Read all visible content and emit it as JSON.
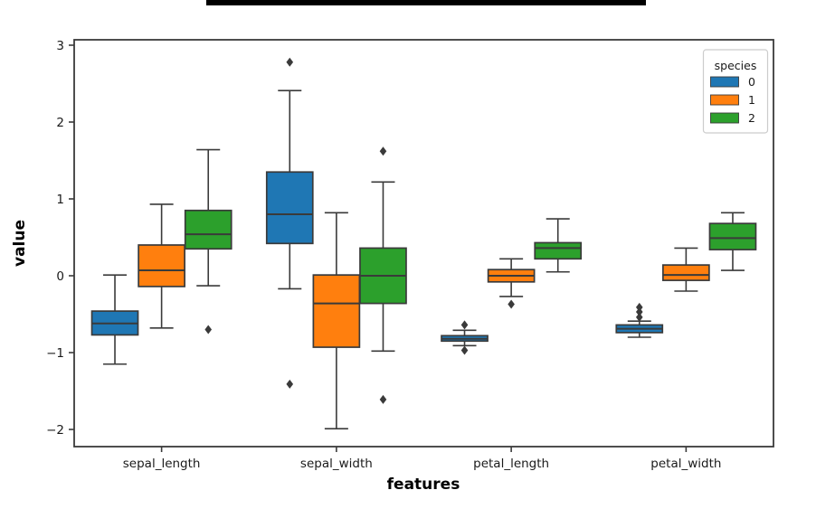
{
  "page": {
    "background": "#ffffff",
    "title_redaction_bar_color": "#000000"
  },
  "chart_data": {
    "type": "boxplot",
    "title": "",
    "xlabel": "features",
    "ylabel": "value",
    "categories": [
      "sepal_length",
      "sepal_width",
      "petal_length",
      "petal_width"
    ],
    "ylim": [
      -2.22,
      3.07
    ],
    "grid": false,
    "yticks": [
      {
        "value": 3,
        "label": "3"
      },
      {
        "value": 2,
        "label": "2"
      },
      {
        "value": 1,
        "label": "1"
      },
      {
        "value": 0,
        "label": "0"
      },
      {
        "value": -1,
        "label": "−1"
      },
      {
        "value": -2,
        "label": "−2"
      }
    ],
    "legend": {
      "title": "species",
      "position": "upper right",
      "entries": [
        {
          "label": "0",
          "color": "#1f77b4"
        },
        {
          "label": "1",
          "color": "#ff7f0e"
        },
        {
          "label": "2",
          "color": "#2ca02c"
        }
      ]
    },
    "style": {
      "spine_color": "#3a3a3a",
      "edge_color": "#3a3a3a",
      "outlier_color": "#3a3a3a",
      "legend_border_color": "#cccccc"
    },
    "series": [
      {
        "name": "0",
        "color": "#1f77b4",
        "boxes": [
          {
            "category": "sepal_length",
            "whislo": -1.15,
            "q1": -0.77,
            "med": -0.62,
            "q3": -0.46,
            "whishi": 0.01,
            "outliers": []
          },
          {
            "category": "sepal_width",
            "whislo": -0.17,
            "q1": 0.42,
            "med": 0.8,
            "q3": 1.35,
            "whishi": 2.41,
            "outliers": [
              2.78,
              -1.41
            ]
          },
          {
            "category": "petal_length",
            "whislo": -0.91,
            "q1": -0.85,
            "med": -0.82,
            "q3": -0.78,
            "whishi": -0.71,
            "outliers": [
              -0.64,
              -0.97
            ]
          },
          {
            "category": "petal_width",
            "whislo": -0.8,
            "q1": -0.74,
            "med": -0.69,
            "q3": -0.64,
            "whishi": -0.59,
            "outliers": [
              -0.41,
              -0.47,
              -0.54
            ]
          }
        ]
      },
      {
        "name": "1",
        "color": "#ff7f0e",
        "boxes": [
          {
            "category": "sepal_length",
            "whislo": -0.68,
            "q1": -0.14,
            "med": 0.07,
            "q3": 0.4,
            "whishi": 0.93,
            "outliers": []
          },
          {
            "category": "sepal_width",
            "whislo": -1.99,
            "q1": -0.93,
            "med": -0.36,
            "q3": 0.01,
            "whishi": 0.82,
            "outliers": []
          },
          {
            "category": "petal_length",
            "whislo": -0.27,
            "q1": -0.08,
            "med": 0.0,
            "q3": 0.08,
            "whishi": 0.22,
            "outliers": [
              -0.37
            ]
          },
          {
            "category": "petal_width",
            "whislo": -0.2,
            "q1": -0.06,
            "med": 0.01,
            "q3": 0.14,
            "whishi": 0.36,
            "outliers": []
          }
        ]
      },
      {
        "name": "2",
        "color": "#2ca02c",
        "boxes": [
          {
            "category": "sepal_length",
            "whislo": -0.13,
            "q1": 0.35,
            "med": 0.54,
            "q3": 0.85,
            "whishi": 1.64,
            "outliers": [
              -0.7
            ]
          },
          {
            "category": "sepal_width",
            "whislo": -0.98,
            "q1": -0.36,
            "med": 0.0,
            "q3": 0.36,
            "whishi": 1.22,
            "outliers": [
              1.62,
              -1.61
            ]
          },
          {
            "category": "petal_length",
            "whislo": 0.05,
            "q1": 0.22,
            "med": 0.36,
            "q3": 0.43,
            "whishi": 0.74,
            "outliers": []
          },
          {
            "category": "petal_width",
            "whislo": 0.07,
            "q1": 0.34,
            "med": 0.49,
            "q3": 0.68,
            "whishi": 0.82,
            "outliers": []
          }
        ]
      }
    ]
  }
}
